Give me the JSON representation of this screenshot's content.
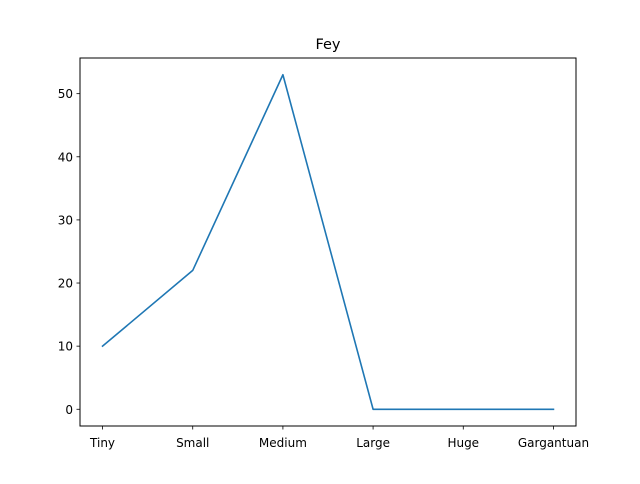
{
  "chart_data": {
    "type": "line",
    "title": "Fey",
    "xlabel": "",
    "ylabel": "",
    "categories": [
      "Tiny",
      "Small",
      "Medium",
      "Large",
      "Huge",
      "Gargantuan"
    ],
    "values": [
      10,
      22,
      53,
      0,
      0,
      0
    ],
    "ylim": [
      -2.65,
      55.65
    ],
    "yticks": [
      0,
      10,
      20,
      30,
      40,
      50
    ],
    "grid": false,
    "line_color": "#1f77b4"
  }
}
